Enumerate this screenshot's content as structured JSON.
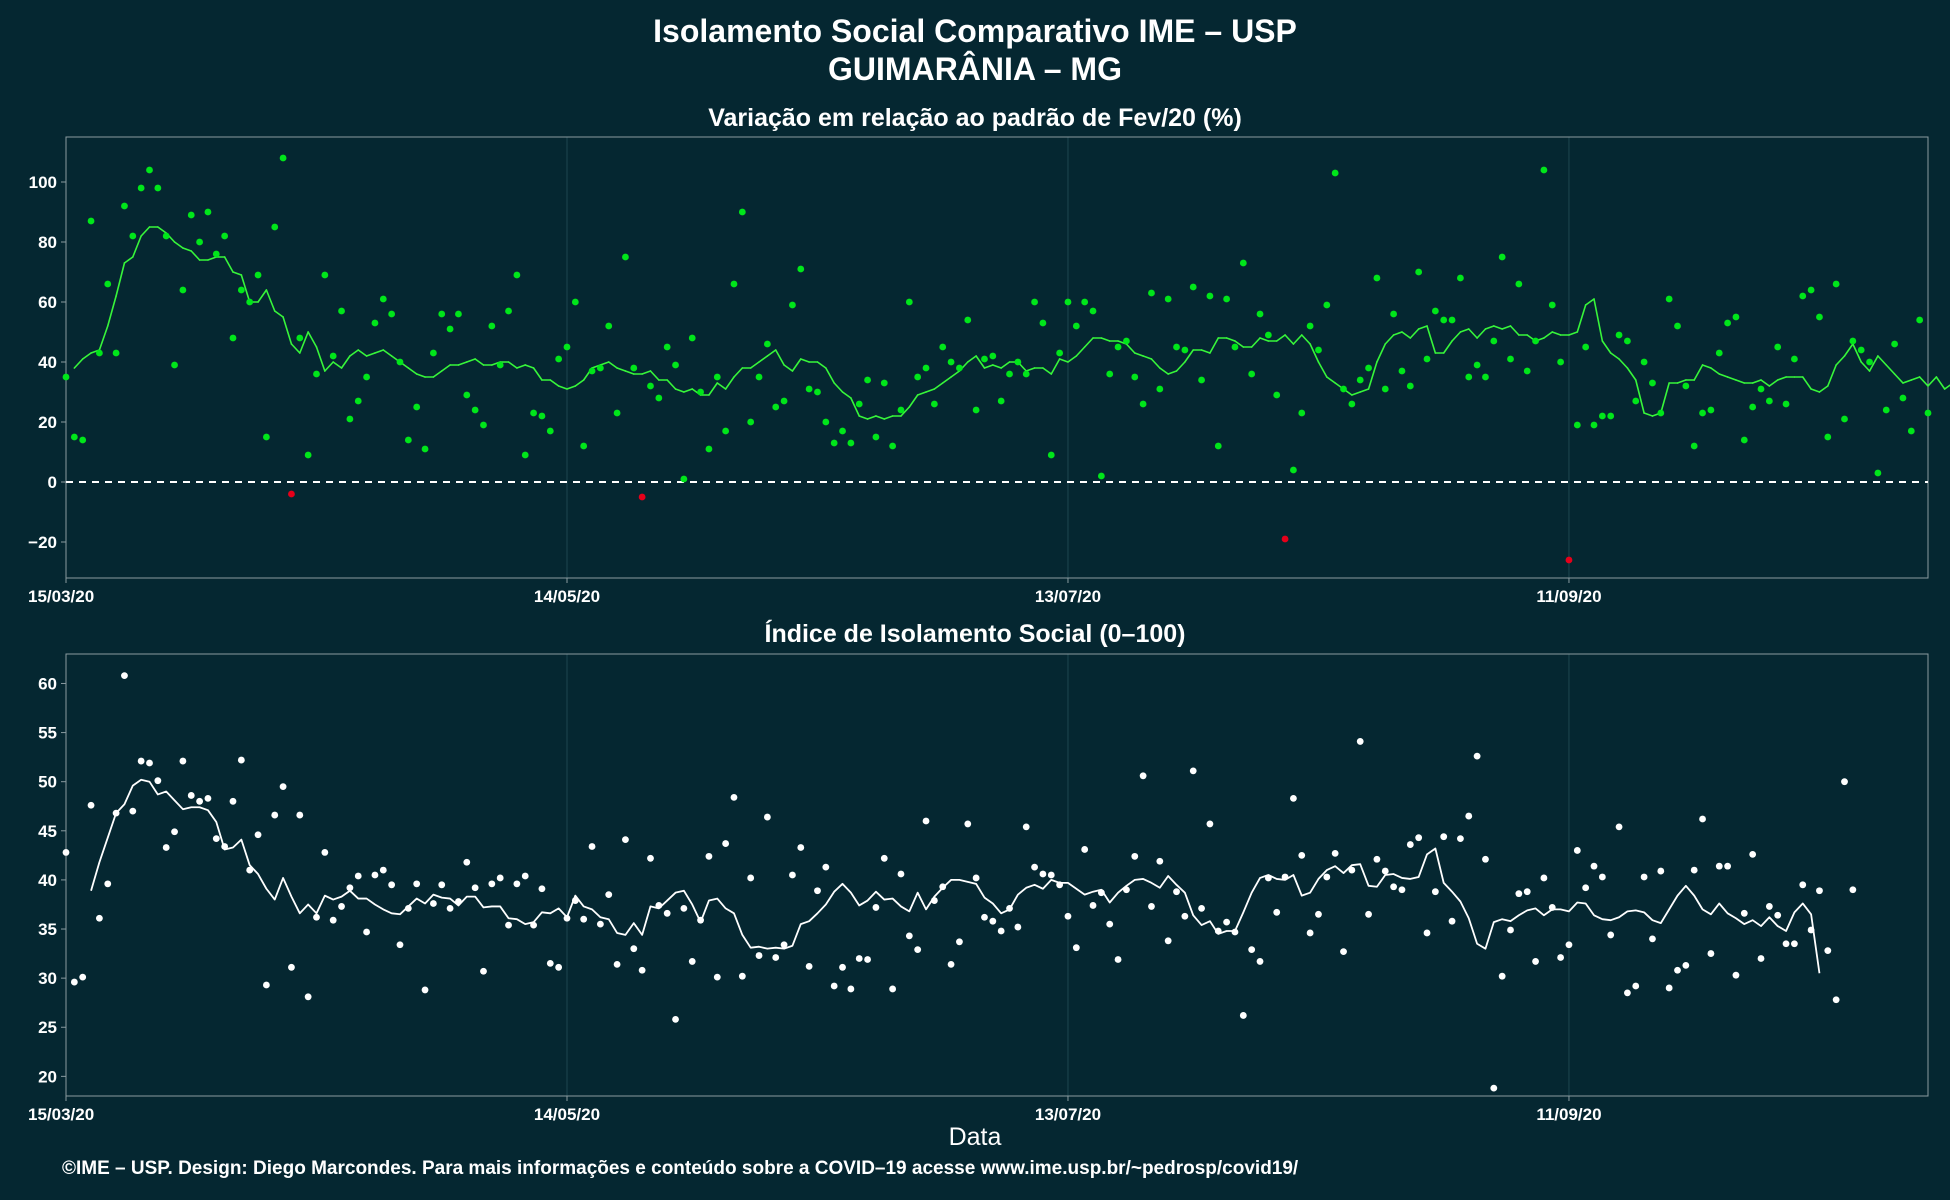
{
  "title_line1": "Isolamento Social Comparativo IME – USP",
  "title_line2": "GUIMARÂNIA – MG",
  "xlabel": "Data",
  "footer": "©IME – USP. Design: Diego Marcondes. Para mais informações e conteúdo sobre a COVID–19 acesse www.ime.usp.br/~pedrosp/covid19/",
  "colors": {
    "background": "#052731",
    "panel_border": "#8a9ba0",
    "grid": "#1e4650",
    "variation_points": "#00e61a",
    "variation_line": "#37f53a",
    "negative": "#e6001a",
    "index_points": "#ffffff",
    "index_line": "#ffffff",
    "zero_line": "#ffffff"
  },
  "chart_data": [
    {
      "type": "scatter",
      "title": "Variação em relação ao padrão de Fev/20 (%)",
      "x_tick_labels": [
        "15/03/20",
        "14/05/20",
        "13/07/20",
        "11/09/20"
      ],
      "x_tick_days": [
        0,
        60,
        120,
        180
      ],
      "xlim": [
        0,
        223
      ],
      "y_ticks": [
        -20,
        0,
        20,
        40,
        60,
        80,
        100
      ],
      "ylim": [
        -32,
        115
      ],
      "reference_line": 0,
      "series": [
        {
          "kind": "points",
          "y": [
            35,
            15,
            14,
            87,
            43,
            66,
            43,
            92,
            82,
            98,
            104,
            98,
            82,
            39,
            64,
            89,
            80,
            90,
            76,
            82,
            48,
            64,
            60,
            69,
            15,
            85,
            108,
            -4,
            48,
            9,
            36,
            69,
            42,
            57,
            21,
            27,
            35,
            53,
            61,
            56,
            40,
            14,
            25,
            11,
            43,
            56,
            51,
            56,
            29,
            24,
            19,
            52,
            39,
            57,
            69,
            9,
            23,
            22,
            17,
            41,
            45,
            60,
            12,
            37,
            38,
            52,
            23,
            75,
            38,
            -5,
            32,
            28,
            45,
            39,
            1,
            48,
            30,
            11,
            35,
            17,
            66,
            90,
            20,
            35,
            46,
            25,
            27,
            59,
            71,
            31,
            30,
            20,
            13,
            17,
            13,
            26,
            34,
            15,
            33,
            12,
            24,
            60,
            35,
            38,
            26,
            45,
            40,
            38,
            54,
            24,
            41,
            42,
            27,
            36,
            40,
            36,
            60,
            53,
            9,
            43,
            60,
            52,
            60,
            57,
            2,
            36,
            45,
            47,
            35,
            26,
            63,
            31,
            61,
            45,
            44,
            65,
            34,
            62,
            12,
            61,
            45,
            73,
            36,
            56,
            49,
            29,
            -19,
            4,
            23,
            52,
            44,
            59,
            103,
            31,
            26,
            34,
            38,
            68,
            31,
            56,
            37,
            32,
            70,
            41,
            57,
            54,
            54,
            68,
            35,
            39,
            35,
            47,
            75,
            41,
            66,
            37,
            47,
            104,
            59,
            40,
            -26,
            19,
            45,
            19,
            22,
            22,
            49,
            47,
            27,
            40,
            33,
            23,
            61,
            52,
            32,
            12,
            23,
            24,
            43,
            53,
            55,
            14,
            25,
            31,
            27,
            45,
            26,
            41,
            62,
            64,
            55,
            15,
            66,
            21,
            47,
            44,
            40,
            3,
            24,
            46,
            28,
            17,
            54,
            23
          ]
        },
        {
          "kind": "line",
          "start": 1,
          "y": [
            38,
            41,
            43,
            44,
            52,
            62,
            73,
            75,
            82,
            85,
            85,
            83,
            80,
            78,
            77,
            74,
            74,
            75,
            75,
            70,
            69,
            60,
            60,
            64,
            57,
            55,
            46,
            43,
            50,
            45,
            37,
            40,
            38,
            42,
            44,
            42,
            43,
            44,
            42,
            40,
            38,
            36,
            35,
            35,
            37,
            39,
            39,
            40,
            41,
            39,
            39,
            40,
            40,
            38,
            39,
            38,
            34,
            34,
            32,
            31,
            32,
            34,
            38,
            39,
            40,
            38,
            37,
            36,
            36,
            37,
            34,
            34,
            31,
            30,
            31,
            29,
            29,
            33,
            31,
            35,
            38,
            38,
            40,
            42,
            44,
            39,
            37,
            41,
            40,
            40,
            38,
            33,
            30,
            28,
            22,
            21,
            22,
            21,
            22,
            22,
            25,
            29,
            30,
            31,
            33,
            35,
            37,
            40,
            42,
            38,
            39,
            38,
            40,
            40,
            37,
            38,
            38,
            36,
            41,
            40,
            42,
            45,
            48,
            48,
            47,
            47,
            46,
            43,
            42,
            41,
            38,
            36,
            37,
            40,
            44,
            44,
            43,
            48,
            48,
            47,
            45,
            45,
            48,
            47,
            47,
            49,
            46,
            49,
            46,
            40,
            35,
            33,
            31,
            29,
            30,
            31,
            40,
            46,
            49,
            50,
            48,
            51,
            52,
            43,
            43,
            47,
            50,
            51,
            48,
            51,
            52,
            51,
            52,
            49,
            49,
            47,
            48,
            50,
            49,
            49,
            50,
            59,
            61,
            47,
            43,
            41,
            38,
            34,
            23,
            22,
            23,
            33,
            33,
            34,
            34,
            39,
            38,
            36,
            35,
            34,
            33,
            33,
            34,
            32,
            34,
            35,
            35,
            35,
            31,
            30,
            32,
            39,
            42,
            46,
            40,
            37,
            42,
            39,
            36,
            33,
            34,
            35,
            32,
            35,
            31,
            33,
            31,
            28,
            30,
            33
          ]
        }
      ]
    },
    {
      "type": "scatter",
      "title": "Índice de Isolamento Social (0–100)",
      "x_tick_labels": [
        "15/03/20",
        "14/05/20",
        "13/07/20",
        "11/09/20"
      ],
      "x_tick_days": [
        0,
        60,
        120,
        180
      ],
      "xlim": [
        0,
        223
      ],
      "y_ticks": [
        20,
        25,
        30,
        35,
        40,
        45,
        50,
        55,
        60
      ],
      "ylim": [
        18,
        63
      ],
      "series": [
        {
          "kind": "points",
          "y": [
            42.8,
            29.6,
            30.1,
            47.6,
            36.1,
            39.6,
            46.8,
            60.8,
            47.0,
            52.1,
            51.9,
            50.1,
            43.3,
            44.9,
            52.1,
            48.6,
            48.0,
            48.3,
            44.2,
            43.4,
            48.0,
            52.2,
            41.0,
            44.6,
            29.3,
            46.6,
            49.5,
            31.1,
            46.6,
            28.1,
            36.2,
            42.8,
            35.9,
            37.3,
            39.2,
            40.4,
            34.7,
            40.5,
            41.0,
            39.5,
            33.4,
            37.1,
            39.6,
            28.8,
            37.6,
            39.5,
            37.1,
            37.8,
            41.8,
            39.2,
            30.7,
            39.6,
            40.2,
            35.4,
            39.6,
            40.4,
            35.4,
            39.1,
            31.5,
            31.1,
            36.1,
            37.9,
            36.0,
            43.4,
            35.5,
            38.5,
            31.4,
            44.1,
            33.0,
            30.8,
            42.2,
            37.4,
            36.6,
            25.8,
            37.1,
            31.7,
            35.9,
            42.4,
            30.1,
            43.7,
            48.4,
            30.2,
            40.2,
            32.3,
            46.4,
            32.1,
            33.4,
            40.5,
            43.3,
            31.2,
            38.9,
            41.3,
            29.2,
            31.1,
            28.9,
            32.0,
            31.9,
            37.2,
            42.2,
            28.9,
            40.6,
            34.3,
            32.9,
            46.0,
            37.9,
            39.3,
            31.4,
            33.7,
            45.7,
            40.2,
            36.2,
            35.8,
            34.8,
            37.1,
            35.2,
            45.4,
            41.3,
            40.6,
            40.5,
            39.5,
            36.3,
            33.1,
            43.1,
            37.4,
            38.7,
            35.5,
            31.9,
            39.0,
            42.4,
            50.6,
            37.3,
            41.9,
            33.8,
            38.8,
            36.3,
            51.1,
            37.1,
            45.7,
            34.8,
            35.7,
            34.7,
            26.2,
            32.9,
            31.7,
            40.2,
            36.7,
            40.3,
            48.3,
            42.5,
            34.6,
            36.5,
            40.3,
            42.7,
            32.7,
            41.0,
            54.1,
            36.5,
            42.1,
            40.9,
            39.3,
            39.0,
            43.6,
            44.3,
            34.6,
            38.8,
            44.4,
            35.8,
            44.2,
            46.5,
            52.6,
            42.1,
            18.8,
            30.2,
            34.9,
            38.6,
            38.8,
            31.7,
            40.2,
            37.2,
            32.1,
            33.4,
            43.0,
            39.2,
            41.4,
            40.3,
            34.4,
            45.4,
            28.5,
            29.2,
            40.3,
            34.0,
            40.9,
            29.0,
            30.8,
            31.3,
            41.0,
            46.2,
            32.5,
            41.4,
            41.4,
            30.3,
            36.6,
            42.6,
            32.0,
            37.3,
            36.4,
            33.5,
            33.5,
            39.5,
            34.9,
            38.9,
            32.8,
            27.8,
            50.0,
            39.0
          ]
        },
        {
          "kind": "line",
          "start": 3,
          "y": [
            38.9,
            41.8,
            44.3,
            46.8,
            47.7,
            49.6,
            50.2,
            50.0,
            48.7,
            49.0,
            48.1,
            47.2,
            47.4,
            47.4,
            47.1,
            45.9,
            43.1,
            43.3,
            44.1,
            41.5,
            40.6,
            39.1,
            38.0,
            40.2,
            38.3,
            36.6,
            37.5,
            36.6,
            38.4,
            38.0,
            38.3,
            38.9,
            38.1,
            38.1,
            37.5,
            37.0,
            36.6,
            36.5,
            37.3,
            38.1,
            37.6,
            38.5,
            38.2,
            38.1,
            37.4,
            38.3,
            38.3,
            37.2,
            37.3,
            37.3,
            36.1,
            36.0,
            35.5,
            35.7,
            36.7,
            36.6,
            37.1,
            36.2,
            38.4,
            37.3,
            37.0,
            36.2,
            36.0,
            34.6,
            34.4,
            35.6,
            34.4,
            37.3,
            37.1,
            37.9,
            38.7,
            38.9,
            37.5,
            35.7,
            37.9,
            38.1,
            37.1,
            36.6,
            34.4,
            33.1,
            33.2,
            33.0,
            33.1,
            33.0,
            33.3,
            35.5,
            35.8,
            36.6,
            37.5,
            38.8,
            39.6,
            38.7,
            37.4,
            37.9,
            38.8,
            38.0,
            38.1,
            37.3,
            36.8,
            38.7,
            37.0,
            38.3,
            39.2,
            40.0,
            40.0,
            39.8,
            39.6,
            38.2,
            37.6,
            36.6,
            37.0,
            38.5,
            39.2,
            39.5,
            39.1,
            40.0,
            39.7,
            39.7,
            39.1,
            38.5,
            38.8,
            39.0,
            37.7,
            38.7,
            39.4,
            40.0,
            40.1,
            39.7,
            39.2,
            40.4,
            39.5,
            38.7,
            36.4,
            35.4,
            35.8,
            34.5,
            34.8,
            34.8,
            36.7,
            38.7,
            40.2,
            40.5,
            40.1,
            40.0,
            40.5,
            38.4,
            38.7,
            40.1,
            41.0,
            41.4,
            40.7,
            41.5,
            41.6,
            39.4,
            39.3,
            40.5,
            40.6,
            40.2,
            40.1,
            40.3,
            42.6,
            43.2,
            39.7,
            38.8,
            37.8,
            36.1,
            33.5,
            33.0,
            35.7,
            36.0,
            35.8,
            36.4,
            36.9,
            37.1,
            36.4,
            37.0,
            37.0,
            36.8,
            37.7,
            37.6,
            36.4,
            36.0,
            35.9,
            36.2,
            36.8,
            36.9,
            36.7,
            35.9,
            35.6,
            37.0,
            38.4,
            39.4,
            38.4,
            37.0,
            36.5,
            37.6,
            36.6,
            36.1,
            35.5,
            35.9,
            35.3,
            36.2,
            35.3,
            34.8,
            36.7,
            37.6,
            36.5,
            30.5
          ]
        }
      ]
    }
  ]
}
